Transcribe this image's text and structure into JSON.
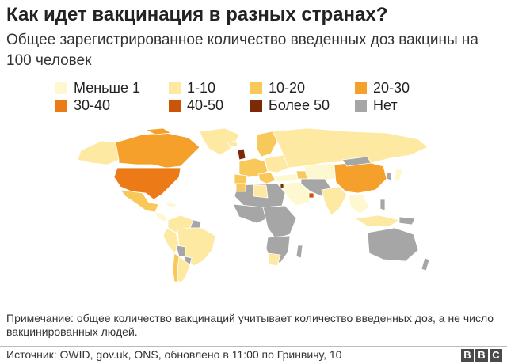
{
  "title": "Как идет вакцинация в разных странах?",
  "subtitle": "Общее зарегистрированное количество введенных доз вакцины на 100 человек",
  "legend": [
    {
      "label": "Меньше 1",
      "color": "#fef8d0"
    },
    {
      "label": "1-10",
      "color": "#fde9a2"
    },
    {
      "label": "10-20",
      "color": "#f8c85a"
    },
    {
      "label": "20-30",
      "color": "#f5a02b"
    },
    {
      "label": "30-40",
      "color": "#ec7a16"
    },
    {
      "label": "40-50",
      "color": "#cc5408"
    },
    {
      "label": "Более 50",
      "color": "#7c2a06"
    },
    {
      "label": "Нет",
      "color": "#a6a6a6"
    }
  ],
  "note": "Примечание: общее количество вакцинаций учитывает количество введенных доз, а не число вакцинированных людей.",
  "source": "Источник: OWID, gov.uk, ONS, обновлено в 11:00 по Гринвичу, 10",
  "logo": [
    "B",
    "B",
    "C"
  ]
}
